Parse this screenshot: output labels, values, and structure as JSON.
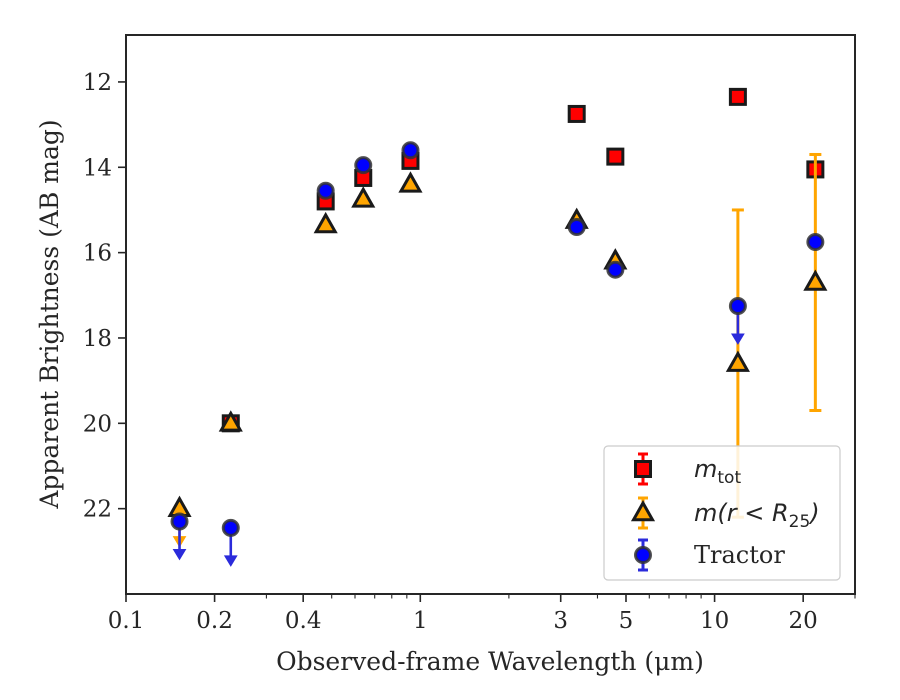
{
  "chart_data": {
    "type": "scatter",
    "title": "",
    "xlabel": "Observed-frame Wavelength (μm)",
    "ylabel": "Apparent Brightness (AB mag)",
    "xscale": "log",
    "xlim": [
      0.1,
      30
    ],
    "ylim": [
      24,
      10.9
    ],
    "y_inverted": true,
    "grid": false,
    "legend_position": "lower-right",
    "x_ticks": [
      {
        "value": 0.1,
        "label": "0.1"
      },
      {
        "value": 0.2,
        "label": "0.2"
      },
      {
        "value": 0.4,
        "label": "0.4"
      },
      {
        "value": 1,
        "label": "1"
      },
      {
        "value": 3,
        "label": "3"
      },
      {
        "value": 5,
        "label": "5"
      },
      {
        "value": 10,
        "label": "10"
      },
      {
        "value": 20,
        "label": "20"
      }
    ],
    "y_ticks": [
      {
        "value": 12,
        "label": "12"
      },
      {
        "value": 14,
        "label": "14"
      },
      {
        "value": 16,
        "label": "16"
      },
      {
        "value": 18,
        "label": "18"
      },
      {
        "value": 20,
        "label": "20"
      },
      {
        "value": 22,
        "label": "22"
      }
    ],
    "series": [
      {
        "key": "mtot",
        "legend_main": "m",
        "legend_sub": "tot",
        "marker": "square",
        "color": "#ff0000",
        "edge_color": "#1a1a1a",
        "points": [
          {
            "x": 0.227,
            "y": 20.0,
            "err": 0.0
          },
          {
            "x": 0.477,
            "y": 14.8,
            "err": 0.0
          },
          {
            "x": 0.64,
            "y": 14.25,
            "err": 0.0
          },
          {
            "x": 0.926,
            "y": 13.85,
            "err": 0.0
          },
          {
            "x": 3.4,
            "y": 12.75,
            "err": 0.0
          },
          {
            "x": 4.6,
            "y": 13.75,
            "err": 0.0
          },
          {
            "x": 12.0,
            "y": 12.35,
            "err": 0.0
          },
          {
            "x": 22.0,
            "y": 14.05,
            "err": 0.0
          }
        ]
      },
      {
        "key": "mr25",
        "legend_main": "m(r < R",
        "legend_sub": "25",
        "legend_close": ")",
        "marker": "triangle",
        "color": "#ffa500",
        "edge_color": "#1a1a1a",
        "points": [
          {
            "x": 0.152,
            "y": 22.0,
            "err": 0.0,
            "upper_limit": true
          },
          {
            "x": 0.227,
            "y": 20.0,
            "err": 0.0
          },
          {
            "x": 0.477,
            "y": 15.35,
            "err": 0.0
          },
          {
            "x": 0.64,
            "y": 14.75,
            "err": 0.0
          },
          {
            "x": 0.926,
            "y": 14.4,
            "err": 0.0
          },
          {
            "x": 3.4,
            "y": 15.25,
            "err": 0.0
          },
          {
            "x": 4.6,
            "y": 16.2,
            "err": 0.0
          },
          {
            "x": 12.0,
            "y": 18.6,
            "err": 3.6
          },
          {
            "x": 22.0,
            "y": 16.7,
            "err": 3.0
          }
        ]
      },
      {
        "key": "tractor",
        "legend_main": "Tractor",
        "marker": "circle",
        "color": "#0000ff",
        "edge_color": "#333333",
        "points": [
          {
            "x": 0.152,
            "y": 22.3,
            "err": 0.0,
            "upper_limit": true
          },
          {
            "x": 0.227,
            "y": 22.45,
            "err": 0.0,
            "upper_limit": true
          },
          {
            "x": 0.477,
            "y": 14.55,
            "err": 0.0
          },
          {
            "x": 0.64,
            "y": 13.95,
            "err": 0.0
          },
          {
            "x": 0.926,
            "y": 13.6,
            "err": 0.0
          },
          {
            "x": 3.4,
            "y": 15.4,
            "err": 0.0
          },
          {
            "x": 4.6,
            "y": 16.4,
            "err": 0.0
          },
          {
            "x": 12.0,
            "y": 17.25,
            "err": 0.0,
            "upper_limit": true
          },
          {
            "x": 22.0,
            "y": 15.75,
            "err": 0.0
          }
        ]
      }
    ]
  }
}
